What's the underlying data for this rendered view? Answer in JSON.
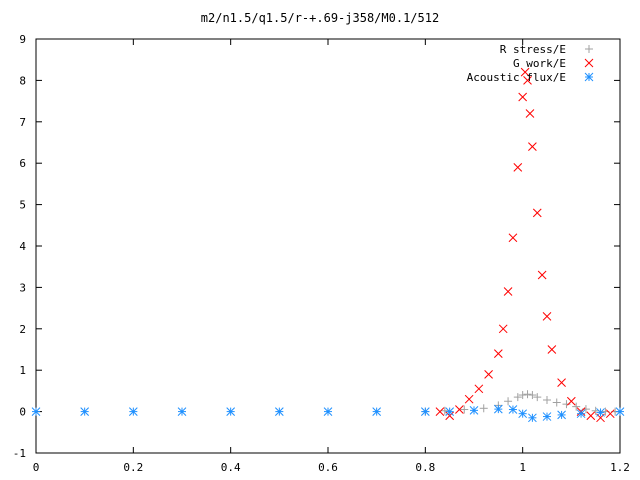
{
  "chart_data": {
    "type": "scatter",
    "title": "m2/n1.5/q1.5/r-+.69-j358/M0.1/512",
    "xlabel": "",
    "ylabel": "",
    "xlim": [
      0,
      1.2
    ],
    "ylim": [
      -1,
      9
    ],
    "xticks": [
      "0",
      "0.2",
      "0.4",
      "0.6",
      "0.8",
      "1",
      "1.2"
    ],
    "yticks": [
      "-1",
      "0",
      "1",
      "2",
      "3",
      "4",
      "5",
      "6",
      "7",
      "8",
      "9"
    ],
    "legend_position": "top-right",
    "grid": false,
    "series": [
      {
        "name": "R stress/E",
        "marker": "plus",
        "color": "#a0a0a0",
        "x": [
          0.8,
          0.84,
          0.88,
          0.92,
          0.95,
          0.97,
          0.99,
          1.0,
          1.01,
          1.02,
          1.03,
          1.05,
          1.07,
          1.09,
          1.11,
          1.13,
          1.15,
          1.17,
          1.19
        ],
        "y": [
          0.0,
          0.02,
          0.05,
          0.08,
          0.15,
          0.25,
          0.35,
          0.4,
          0.42,
          0.4,
          0.35,
          0.28,
          0.22,
          0.18,
          0.12,
          0.06,
          0.02,
          0.0,
          0.0
        ]
      },
      {
        "name": "G work/E",
        "marker": "cross",
        "color": "#ff0000",
        "x": [
          0.83,
          0.85,
          0.87,
          0.89,
          0.91,
          0.93,
          0.95,
          0.96,
          0.97,
          0.98,
          0.99,
          1.0,
          1.005,
          1.01,
          1.015,
          1.02,
          1.03,
          1.04,
          1.05,
          1.06,
          1.08,
          1.1,
          1.12,
          1.14,
          1.16,
          1.18
        ],
        "y": [
          0.0,
          -0.1,
          0.05,
          0.3,
          0.55,
          0.9,
          1.4,
          2.0,
          2.9,
          4.2,
          5.9,
          7.6,
          8.2,
          8.0,
          7.2,
          6.4,
          4.8,
          3.3,
          2.3,
          1.5,
          0.7,
          0.25,
          0.0,
          -0.1,
          -0.15,
          -0.05
        ]
      },
      {
        "name": "Acoustic flux/E",
        "marker": "star",
        "color": "#1e90ff",
        "x": [
          0.0,
          0.1,
          0.2,
          0.3,
          0.4,
          0.5,
          0.6,
          0.7,
          0.8,
          0.85,
          0.9,
          0.95,
          0.98,
          1.0,
          1.02,
          1.05,
          1.08,
          1.12,
          1.16,
          1.2
        ],
        "y": [
          0.0,
          0.0,
          0.0,
          0.0,
          0.0,
          0.0,
          0.0,
          0.0,
          0.0,
          0.0,
          0.03,
          0.06,
          0.05,
          -0.05,
          -0.15,
          -0.12,
          -0.08,
          -0.05,
          -0.02,
          0.0
        ]
      }
    ]
  }
}
